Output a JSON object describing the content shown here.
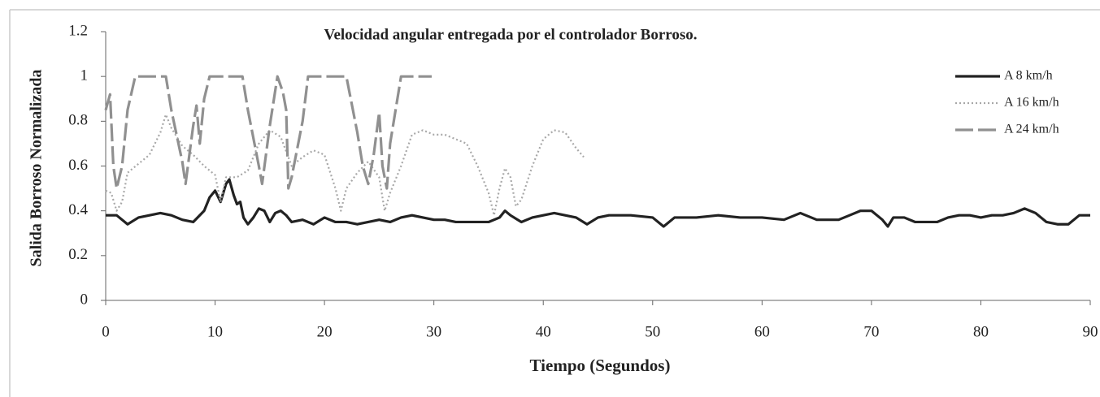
{
  "chart_data": {
    "type": "line",
    "title": "Velocidad angular entregada por el controlador Borroso.",
    "x_label": "Tiempo (Segundos)",
    "y_label": "Salida Borroso Normalizada",
    "xlim": [
      0,
      90
    ],
    "xticks": [
      0,
      10,
      20,
      30,
      40,
      50,
      60,
      70,
      80,
      90
    ],
    "ylim": [
      0,
      1.2
    ],
    "yticks": [
      0,
      0.2,
      0.4,
      0.6,
      0.8,
      1,
      1.2
    ],
    "grid": false,
    "legend": "upper right",
    "series": [
      {
        "name": "A 8 km/h",
        "color": "#222222",
        "style": "solid",
        "x": [
          0,
          1,
          2,
          3,
          4,
          5,
          6,
          7,
          8,
          9,
          9.5,
          10,
          10.5,
          11,
          11.3,
          11.7,
          12,
          12.3,
          12.6,
          13,
          13.5,
          14,
          14.5,
          15,
          15.5,
          16,
          16.5,
          17,
          18,
          19,
          20,
          21,
          22,
          23,
          24,
          25,
          26,
          27,
          28,
          29,
          30,
          31,
          32,
          33,
          34,
          35,
          36,
          36.5,
          37,
          38,
          39,
          40,
          41,
          42,
          43,
          44,
          45,
          46,
          48,
          50,
          51,
          52,
          54,
          56,
          58,
          60,
          62,
          63.5,
          65,
          67,
          68,
          69,
          70,
          71,
          71.5,
          72,
          73,
          74,
          75,
          76,
          77,
          78,
          79,
          80,
          81,
          82,
          83,
          84,
          85,
          86,
          87,
          88,
          89,
          90
        ],
        "values": [
          0.38,
          0.38,
          0.34,
          0.37,
          0.38,
          0.39,
          0.38,
          0.36,
          0.35,
          0.4,
          0.46,
          0.49,
          0.44,
          0.52,
          0.54,
          0.47,
          0.43,
          0.44,
          0.37,
          0.34,
          0.37,
          0.41,
          0.4,
          0.35,
          0.39,
          0.4,
          0.38,
          0.35,
          0.36,
          0.34,
          0.37,
          0.35,
          0.35,
          0.34,
          0.35,
          0.36,
          0.35,
          0.37,
          0.38,
          0.37,
          0.36,
          0.36,
          0.35,
          0.35,
          0.35,
          0.35,
          0.37,
          0.4,
          0.38,
          0.35,
          0.37,
          0.38,
          0.39,
          0.38,
          0.37,
          0.34,
          0.37,
          0.38,
          0.38,
          0.37,
          0.33,
          0.37,
          0.37,
          0.38,
          0.37,
          0.37,
          0.36,
          0.39,
          0.36,
          0.36,
          0.38,
          0.4,
          0.4,
          0.36,
          0.33,
          0.37,
          0.37,
          0.35,
          0.35,
          0.35,
          0.37,
          0.38,
          0.38,
          0.37,
          0.38,
          0.38,
          0.39,
          0.41,
          0.39,
          0.35,
          0.34,
          0.34,
          0.38,
          0.38
        ]
      },
      {
        "name": "A 16 km/h",
        "color": "#a8a8a8",
        "style": "dotted",
        "x": [
          0,
          0.5,
          1,
          1.5,
          2,
          3,
          4,
          5,
          5.5,
          6,
          7,
          8,
          9,
          10,
          10.5,
          11,
          12,
          13,
          14,
          15,
          16,
          17,
          18,
          19,
          20,
          21,
          21.5,
          22,
          23,
          24,
          25,
          25.5,
          26,
          27,
          28,
          29,
          30,
          31,
          32,
          33,
          34,
          35,
          35.5,
          36,
          36.5,
          37,
          37.5,
          38,
          39,
          40,
          41,
          42,
          43,
          43.7
        ],
        "values": [
          0.49,
          0.48,
          0.4,
          0.44,
          0.57,
          0.61,
          0.65,
          0.75,
          0.83,
          0.77,
          0.69,
          0.65,
          0.6,
          0.56,
          0.44,
          0.55,
          0.55,
          0.58,
          0.7,
          0.76,
          0.73,
          0.6,
          0.64,
          0.67,
          0.65,
          0.5,
          0.4,
          0.5,
          0.57,
          0.62,
          0.55,
          0.4,
          0.48,
          0.6,
          0.74,
          0.76,
          0.74,
          0.74,
          0.72,
          0.7,
          0.6,
          0.48,
          0.38,
          0.5,
          0.59,
          0.55,
          0.42,
          0.45,
          0.6,
          0.72,
          0.76,
          0.75,
          0.68,
          0.64
        ]
      },
      {
        "name": "A 24 km/h",
        "color": "#909090",
        "style": "dashed",
        "x": [
          0,
          0.4,
          0.7,
          1,
          1.5,
          2,
          2.7,
          5.5,
          6,
          7,
          7.3,
          8,
          8.3,
          8.6,
          9,
          9.5,
          12.5,
          13,
          14,
          14.3,
          15,
          15.7,
          16.2,
          16.5,
          16.7,
          17,
          18,
          18.5,
          22,
          23,
          23.5,
          24,
          24.5,
          25,
          25.3,
          25.7,
          26,
          27,
          29.8
        ],
        "values": [
          0.85,
          0.92,
          0.6,
          0.5,
          0.6,
          0.85,
          1,
          1,
          0.85,
          0.62,
          0.52,
          0.78,
          0.87,
          0.7,
          0.9,
          1,
          1,
          0.85,
          0.6,
          0.52,
          0.78,
          1,
          0.93,
          0.85,
          0.5,
          0.55,
          0.8,
          1,
          1,
          0.75,
          0.6,
          0.52,
          0.65,
          0.84,
          0.6,
          0.5,
          0.7,
          1,
          1
        ]
      }
    ]
  }
}
